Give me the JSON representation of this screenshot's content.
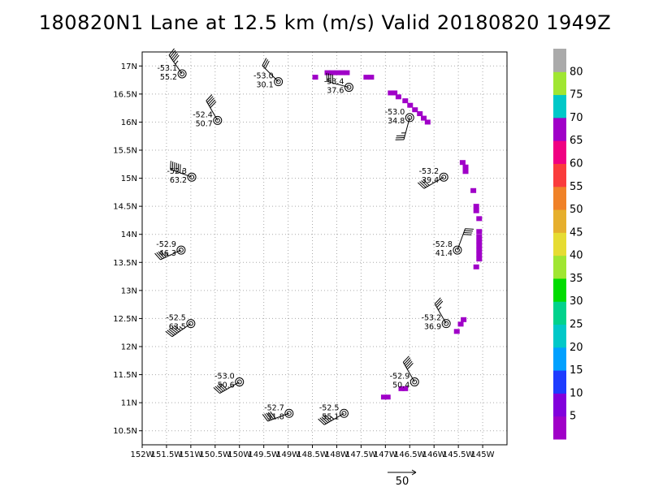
{
  "title": "180820N1 Lane at 12.5 km (m/s) Valid 20180820 1949Z",
  "map": {
    "lon_range": [
      -152,
      -144.5
    ],
    "lat_range": [
      10.25,
      17.25
    ],
    "lon_ticks": [
      {
        "v": -152,
        "label": "152W"
      },
      {
        "v": -151.5,
        "label": "151.5W"
      },
      {
        "v": -151,
        "label": "151W"
      },
      {
        "v": -150.5,
        "label": "150.5W"
      },
      {
        "v": -150,
        "label": "150W"
      },
      {
        "v": -149.5,
        "label": "149.5W"
      },
      {
        "v": -149,
        "label": "149W"
      },
      {
        "v": -148.5,
        "label": "148.5W"
      },
      {
        "v": -148,
        "label": "148W"
      },
      {
        "v": -147.5,
        "label": "147.5W"
      },
      {
        "v": -147,
        "label": "147W"
      },
      {
        "v": -146.5,
        "label": "146.5W"
      },
      {
        "v": -146,
        "label": "146W"
      },
      {
        "v": -145.5,
        "label": "145.5W"
      },
      {
        "v": -145,
        "label": "145W"
      }
    ],
    "lat_ticks": [
      {
        "v": 10.5,
        "label": "10.5N"
      },
      {
        "v": 11,
        "label": "11N"
      },
      {
        "v": 11.5,
        "label": "11.5N"
      },
      {
        "v": 12,
        "label": "12N"
      },
      {
        "v": 12.5,
        "label": "12.5N"
      },
      {
        "v": 13,
        "label": "13N"
      },
      {
        "v": 13.5,
        "label": "13.5N"
      },
      {
        "v": 14,
        "label": "14N"
      },
      {
        "v": 14.5,
        "label": "14.5N"
      },
      {
        "v": 15,
        "label": "15N"
      },
      {
        "v": 15.5,
        "label": "15.5N"
      },
      {
        "v": 16,
        "label": "16N"
      },
      {
        "v": 16.5,
        "label": "16.5N"
      },
      {
        "v": 17,
        "label": "17N"
      }
    ]
  },
  "stations": [
    {
      "lon": -151.18,
      "lat": 16.86,
      "t": "-53.1",
      "w": "55.2",
      "wdir": 325,
      "wspd": 55.2
    },
    {
      "lon": -149.2,
      "lat": 16.72,
      "t": "-53.0",
      "w": "30.1",
      "wdir": 315,
      "wspd": 30.1
    },
    {
      "lon": -147.75,
      "lat": 16.62,
      "t": "-53.4",
      "w": "37.6",
      "wdir": 285,
      "wspd": 37.6
    },
    {
      "lon": -146.5,
      "lat": 16.08,
      "t": "-53.0",
      "w": "34.8",
      "wdir": 195,
      "wspd": 34.8
    },
    {
      "lon": -150.45,
      "lat": 16.03,
      "t": "-52.4",
      "w": "50.7",
      "wdir": 330,
      "wspd": 50.7
    },
    {
      "lon": -150.98,
      "lat": 15.02,
      "t": "-52.3",
      "w": "63.2",
      "wdir": 290,
      "wspd": 63.2
    },
    {
      "lon": -145.8,
      "lat": 15.02,
      "t": "-53.2",
      "w": "39.4",
      "wdir": 240,
      "wspd": 39.4
    },
    {
      "lon": -151.2,
      "lat": 13.72,
      "t": "-52.9",
      "w": "46.3",
      "wdir": 245,
      "wspd": 46.3
    },
    {
      "lon": -145.52,
      "lat": 13.72,
      "t": "-52.8",
      "w": "41.4",
      "wdir": 20,
      "wspd": 41.4
    },
    {
      "lon": -151.0,
      "lat": 12.41,
      "t": "-52.5",
      "w": "63.5",
      "wdir": 235,
      "wspd": 63.5
    },
    {
      "lon": -145.75,
      "lat": 12.41,
      "t": "-53.2",
      "w": "36.9",
      "wdir": 330,
      "wspd": 36.9
    },
    {
      "lon": -150.0,
      "lat": 11.37,
      "t": "-53.0",
      "w": "50.6",
      "wdir": 240,
      "wspd": 50.6
    },
    {
      "lon": -146.4,
      "lat": 11.37,
      "t": "-52.9",
      "w": "50.4",
      "wdir": 330,
      "wspd": 50.4
    },
    {
      "lon": -148.98,
      "lat": 10.81,
      "t": "-52.7",
      "w": "51.8",
      "wdir": 250,
      "wspd": 51.8
    },
    {
      "lon": -147.85,
      "lat": 10.81,
      "t": "-52.5",
      "w": "55.1",
      "wdir": 240,
      "wspd": 55.1
    }
  ],
  "pixels": [
    {
      "lon": -148.45,
      "lat": 16.8,
      "c": 5
    },
    {
      "lon": -148.2,
      "lat": 16.88,
      "c": 5
    },
    {
      "lon": -148.1,
      "lat": 16.88,
      "c": 5
    },
    {
      "lon": -148.0,
      "lat": 16.88,
      "c": 5
    },
    {
      "lon": -147.9,
      "lat": 16.88,
      "c": 5
    },
    {
      "lon": -147.8,
      "lat": 16.88,
      "c": 5
    },
    {
      "lon": -147.4,
      "lat": 16.8,
      "c": 5
    },
    {
      "lon": -147.3,
      "lat": 16.8,
      "c": 5
    },
    {
      "lon": -146.9,
      "lat": 16.52,
      "c": 5
    },
    {
      "lon": -146.82,
      "lat": 16.52,
      "c": 5
    },
    {
      "lon": -146.74,
      "lat": 16.45,
      "c": 5
    },
    {
      "lon": -146.6,
      "lat": 16.38,
      "c": 5
    },
    {
      "lon": -146.5,
      "lat": 16.3,
      "c": 5
    },
    {
      "lon": -146.4,
      "lat": 16.22,
      "c": 5
    },
    {
      "lon": -146.3,
      "lat": 16.15,
      "c": 5
    },
    {
      "lon": -146.22,
      "lat": 16.07,
      "c": 5
    },
    {
      "lon": -146.14,
      "lat": 16.0,
      "c": 5
    },
    {
      "lon": -145.42,
      "lat": 15.28,
      "c": 5
    },
    {
      "lon": -145.36,
      "lat": 15.2,
      "c": 5
    },
    {
      "lon": -145.36,
      "lat": 15.12,
      "c": 5
    },
    {
      "lon": -145.2,
      "lat": 14.78,
      "c": 5
    },
    {
      "lon": -145.14,
      "lat": 14.5,
      "c": 5
    },
    {
      "lon": -145.14,
      "lat": 14.42,
      "c": 5
    },
    {
      "lon": -145.08,
      "lat": 14.28,
      "c": 5
    },
    {
      "lon": -145.08,
      "lat": 14.05,
      "c": 5
    },
    {
      "lon": -145.08,
      "lat": 13.96,
      "c": 5
    },
    {
      "lon": -145.08,
      "lat": 13.88,
      "c": 5
    },
    {
      "lon": -145.08,
      "lat": 13.8,
      "c": 5
    },
    {
      "lon": -145.08,
      "lat": 13.72,
      "c": 5
    },
    {
      "lon": -145.08,
      "lat": 13.64,
      "c": 5
    },
    {
      "lon": -145.08,
      "lat": 13.56,
      "c": 5
    },
    {
      "lon": -145.14,
      "lat": 13.42,
      "c": 5
    },
    {
      "lon": -145.4,
      "lat": 12.48,
      "c": 5
    },
    {
      "lon": -145.46,
      "lat": 12.4,
      "c": 5
    },
    {
      "lon": -145.54,
      "lat": 12.27,
      "c": 5
    },
    {
      "lon": -146.6,
      "lat": 11.25,
      "c": 5
    },
    {
      "lon": -146.68,
      "lat": 11.25,
      "c": 5
    },
    {
      "lon": -146.96,
      "lat": 11.1,
      "c": 5
    },
    {
      "lon": -147.04,
      "lat": 11.1,
      "c": 5
    }
  ],
  "colorbar": {
    "labels": [
      "5",
      "10",
      "15",
      "20",
      "25",
      "30",
      "35",
      "40",
      "45",
      "50",
      "55",
      "60",
      "65",
      "70",
      "75",
      "80"
    ],
    "colors": [
      "#a000c8",
      "#8200dc",
      "#1e3cff",
      "#00a0ff",
      "#00c8c8",
      "#00d28c",
      "#00dc00",
      "#a0e632",
      "#e6dc32",
      "#e6af2d",
      "#f08228",
      "#fa3c3c",
      "#f00082",
      "#a000c8",
      "#00c8c8",
      "#a0e632",
      "#aaaaaa"
    ]
  },
  "reference_vector": {
    "label": "50",
    "speed": 50
  }
}
